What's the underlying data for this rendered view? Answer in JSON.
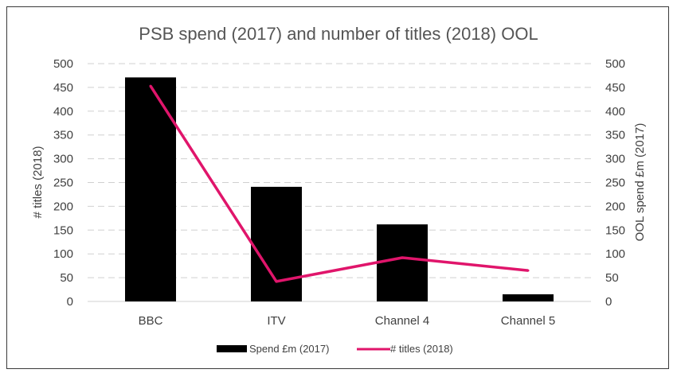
{
  "chart_data": {
    "type": "bar",
    "title": "PSB spend (2017) and number of titles (2018) OOL",
    "categories": [
      "BBC",
      "ITV",
      "Channel 4",
      "Channel 5"
    ],
    "series": [
      {
        "name": "Spend £m (2017)",
        "type": "bar",
        "axis": "right",
        "values": [
          471,
          241,
          162,
          15
        ],
        "color": "#000000"
      },
      {
        "name": "# titles (2018)",
        "type": "line",
        "axis": "left",
        "values": [
          453,
          42,
          92,
          65
        ],
        "color": "#e0156b"
      }
    ],
    "ylabel_left": "# titles (2018)",
    "ylabel_right": "OOL spend £m (2017)",
    "ylim": [
      0,
      500
    ],
    "yticks": [
      0,
      50,
      100,
      150,
      200,
      250,
      300,
      350,
      400,
      450,
      500
    ],
    "grid": true,
    "legend": "bottom"
  }
}
